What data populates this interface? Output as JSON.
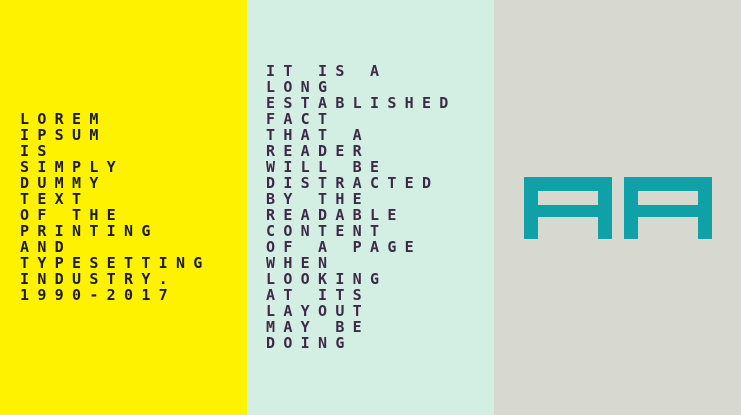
{
  "panels": [
    {
      "background": "#fff200",
      "text_color": "#1f1b1f",
      "lines": [
        "LOREM",
        "IPSUM",
        "IS",
        "SIMPLY",
        "DUMMY",
        "TEXT",
        "OF THE",
        "PRINTING",
        "AND",
        "TYPESETTING",
        "INDUSTRY.",
        "1990-2017"
      ]
    },
    {
      "background": "#d3efe4",
      "text_color": "#3d2b45",
      "lines": [
        "IT IS A",
        "LONG",
        "ESTABLISHED",
        "FACT",
        "THAT A",
        "READER",
        "WILL BE",
        "DISTRACTED",
        "BY THE",
        "READABLE",
        "CONTENT",
        "OF A PAGE",
        "WHEN",
        "LOOKING",
        "AT ITS",
        "LAYOUT",
        "MAY BE",
        "DOING"
      ]
    },
    {
      "background": "#d7d9d0",
      "glyph_text": "Aa",
      "glyph_color": "#0fa0a8"
    }
  ]
}
